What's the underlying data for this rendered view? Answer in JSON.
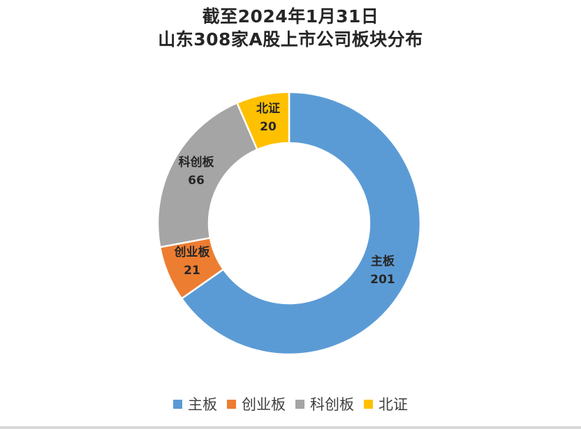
{
  "chart_data": {
    "type": "pie",
    "variant": "donut",
    "title": [
      "截至2024年1月31日",
      "山东308家A股上市公司板块分布"
    ],
    "categories": [
      "主板",
      "创业板",
      "科创板",
      "北证"
    ],
    "values": [
      201,
      21,
      66,
      20
    ],
    "colors": [
      "#5b9bd5",
      "#ed7d31",
      "#a5a5a5",
      "#ffc000"
    ],
    "data_labels": true,
    "legend_position": "bottom"
  }
}
